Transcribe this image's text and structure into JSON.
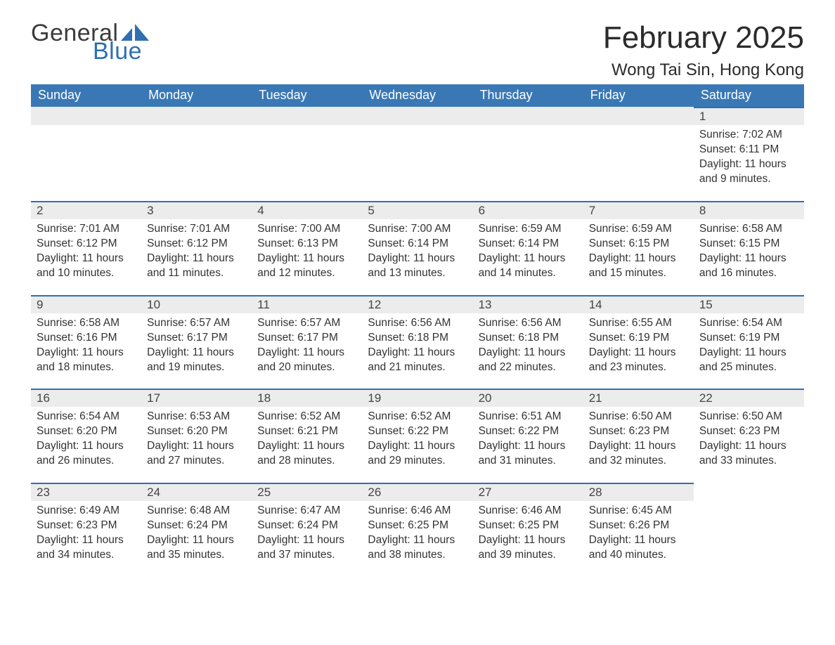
{
  "logo": {
    "text1": "General",
    "text2": "Blue",
    "sail_color": "#2f6fb0",
    "text1_color": "#3b3b3b"
  },
  "title": "February 2025",
  "location": "Wong Tai Sin, Hong Kong",
  "header_bg": "#3a78b5",
  "header_fg": "#ffffff",
  "daynum_bg": "#ececec",
  "daynum_border": "#2f6fb0",
  "weekdays": [
    "Sunday",
    "Monday",
    "Tuesday",
    "Wednesday",
    "Thursday",
    "Friday",
    "Saturday"
  ],
  "weeks": [
    [
      null,
      null,
      null,
      null,
      null,
      null,
      {
        "n": "1",
        "sunrise": "Sunrise: 7:02 AM",
        "sunset": "Sunset: 6:11 PM",
        "day1": "Daylight: 11 hours",
        "day2": "and 9 minutes."
      }
    ],
    [
      {
        "n": "2",
        "sunrise": "Sunrise: 7:01 AM",
        "sunset": "Sunset: 6:12 PM",
        "day1": "Daylight: 11 hours",
        "day2": "and 10 minutes."
      },
      {
        "n": "3",
        "sunrise": "Sunrise: 7:01 AM",
        "sunset": "Sunset: 6:12 PM",
        "day1": "Daylight: 11 hours",
        "day2": "and 11 minutes."
      },
      {
        "n": "4",
        "sunrise": "Sunrise: 7:00 AM",
        "sunset": "Sunset: 6:13 PM",
        "day1": "Daylight: 11 hours",
        "day2": "and 12 minutes."
      },
      {
        "n": "5",
        "sunrise": "Sunrise: 7:00 AM",
        "sunset": "Sunset: 6:14 PM",
        "day1": "Daylight: 11 hours",
        "day2": "and 13 minutes."
      },
      {
        "n": "6",
        "sunrise": "Sunrise: 6:59 AM",
        "sunset": "Sunset: 6:14 PM",
        "day1": "Daylight: 11 hours",
        "day2": "and 14 minutes."
      },
      {
        "n": "7",
        "sunrise": "Sunrise: 6:59 AM",
        "sunset": "Sunset: 6:15 PM",
        "day1": "Daylight: 11 hours",
        "day2": "and 15 minutes."
      },
      {
        "n": "8",
        "sunrise": "Sunrise: 6:58 AM",
        "sunset": "Sunset: 6:15 PM",
        "day1": "Daylight: 11 hours",
        "day2": "and 16 minutes."
      }
    ],
    [
      {
        "n": "9",
        "sunrise": "Sunrise: 6:58 AM",
        "sunset": "Sunset: 6:16 PM",
        "day1": "Daylight: 11 hours",
        "day2": "and 18 minutes."
      },
      {
        "n": "10",
        "sunrise": "Sunrise: 6:57 AM",
        "sunset": "Sunset: 6:17 PM",
        "day1": "Daylight: 11 hours",
        "day2": "and 19 minutes."
      },
      {
        "n": "11",
        "sunrise": "Sunrise: 6:57 AM",
        "sunset": "Sunset: 6:17 PM",
        "day1": "Daylight: 11 hours",
        "day2": "and 20 minutes."
      },
      {
        "n": "12",
        "sunrise": "Sunrise: 6:56 AM",
        "sunset": "Sunset: 6:18 PM",
        "day1": "Daylight: 11 hours",
        "day2": "and 21 minutes."
      },
      {
        "n": "13",
        "sunrise": "Sunrise: 6:56 AM",
        "sunset": "Sunset: 6:18 PM",
        "day1": "Daylight: 11 hours",
        "day2": "and 22 minutes."
      },
      {
        "n": "14",
        "sunrise": "Sunrise: 6:55 AM",
        "sunset": "Sunset: 6:19 PM",
        "day1": "Daylight: 11 hours",
        "day2": "and 23 minutes."
      },
      {
        "n": "15",
        "sunrise": "Sunrise: 6:54 AM",
        "sunset": "Sunset: 6:19 PM",
        "day1": "Daylight: 11 hours",
        "day2": "and 25 minutes."
      }
    ],
    [
      {
        "n": "16",
        "sunrise": "Sunrise: 6:54 AM",
        "sunset": "Sunset: 6:20 PM",
        "day1": "Daylight: 11 hours",
        "day2": "and 26 minutes."
      },
      {
        "n": "17",
        "sunrise": "Sunrise: 6:53 AM",
        "sunset": "Sunset: 6:20 PM",
        "day1": "Daylight: 11 hours",
        "day2": "and 27 minutes."
      },
      {
        "n": "18",
        "sunrise": "Sunrise: 6:52 AM",
        "sunset": "Sunset: 6:21 PM",
        "day1": "Daylight: 11 hours",
        "day2": "and 28 minutes."
      },
      {
        "n": "19",
        "sunrise": "Sunrise: 6:52 AM",
        "sunset": "Sunset: 6:22 PM",
        "day1": "Daylight: 11 hours",
        "day2": "and 29 minutes."
      },
      {
        "n": "20",
        "sunrise": "Sunrise: 6:51 AM",
        "sunset": "Sunset: 6:22 PM",
        "day1": "Daylight: 11 hours",
        "day2": "and 31 minutes."
      },
      {
        "n": "21",
        "sunrise": "Sunrise: 6:50 AM",
        "sunset": "Sunset: 6:23 PM",
        "day1": "Daylight: 11 hours",
        "day2": "and 32 minutes."
      },
      {
        "n": "22",
        "sunrise": "Sunrise: 6:50 AM",
        "sunset": "Sunset: 6:23 PM",
        "day1": "Daylight: 11 hours",
        "day2": "and 33 minutes."
      }
    ],
    [
      {
        "n": "23",
        "sunrise": "Sunrise: 6:49 AM",
        "sunset": "Sunset: 6:23 PM",
        "day1": "Daylight: 11 hours",
        "day2": "and 34 minutes."
      },
      {
        "n": "24",
        "sunrise": "Sunrise: 6:48 AM",
        "sunset": "Sunset: 6:24 PM",
        "day1": "Daylight: 11 hours",
        "day2": "and 35 minutes."
      },
      {
        "n": "25",
        "sunrise": "Sunrise: 6:47 AM",
        "sunset": "Sunset: 6:24 PM",
        "day1": "Daylight: 11 hours",
        "day2": "and 37 minutes."
      },
      {
        "n": "26",
        "sunrise": "Sunrise: 6:46 AM",
        "sunset": "Sunset: 6:25 PM",
        "day1": "Daylight: 11 hours",
        "day2": "and 38 minutes."
      },
      {
        "n": "27",
        "sunrise": "Sunrise: 6:46 AM",
        "sunset": "Sunset: 6:25 PM",
        "day1": "Daylight: 11 hours",
        "day2": "and 39 minutes."
      },
      {
        "n": "28",
        "sunrise": "Sunrise: 6:45 AM",
        "sunset": "Sunset: 6:26 PM",
        "day1": "Daylight: 11 hours",
        "day2": "and 40 minutes."
      },
      null
    ]
  ]
}
